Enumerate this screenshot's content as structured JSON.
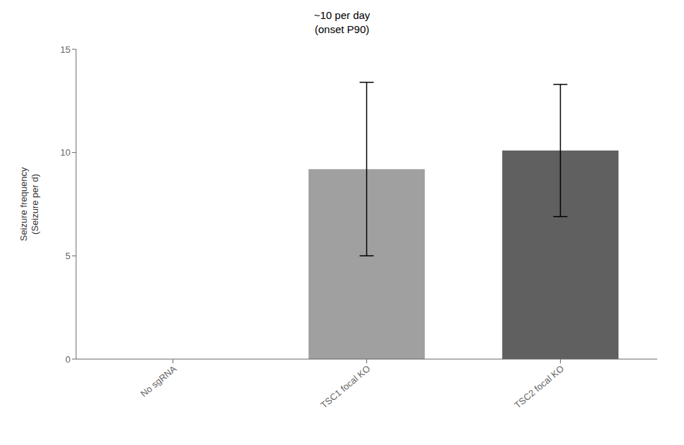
{
  "chart_data": {
    "type": "bar",
    "categories": [
      "No sgRNA",
      "TSC1 focal KO",
      "TSC2 focal KO"
    ],
    "values": [
      0,
      9.2,
      10.1
    ],
    "errors": [
      0,
      4.2,
      3.2
    ],
    "colors": [
      "#b0b0b0",
      "#a0a0a0",
      "#606060"
    ],
    "ylabel": "Seizure frequency\n(Seizure per d)",
    "ylim": [
      0,
      15
    ],
    "yticks": [
      0,
      5,
      10,
      15
    ],
    "annotation": "~10 per day\n(onset P90)",
    "grid": false
  }
}
